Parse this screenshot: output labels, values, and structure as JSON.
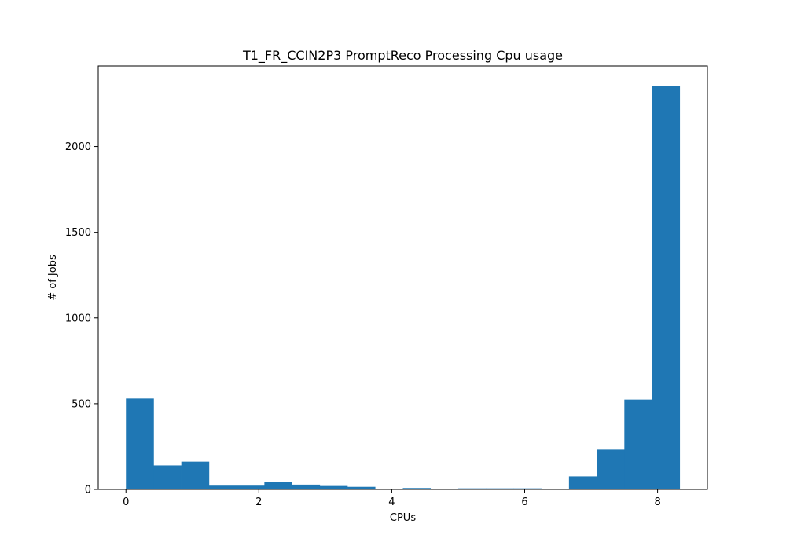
{
  "chart_data": {
    "type": "bar",
    "title": "T1_FR_CCIN2P3 PromptReco Processing Cpu usage",
    "xlabel": "CPUs",
    "ylabel": "# of Jobs",
    "xlim": [
      -0.4167,
      8.75
    ],
    "ylim": [
      0,
      2470
    ],
    "xticks": [
      0,
      2,
      4,
      6,
      8
    ],
    "yticks": [
      0,
      500,
      1000,
      1500,
      2000
    ],
    "bin_edges": [
      0,
      0.4167,
      0.8333,
      1.25,
      1.6667,
      2.0833,
      2.5,
      2.9167,
      3.3333,
      3.75,
      4.1667,
      4.5833,
      5.0,
      5.4167,
      5.8333,
      6.25,
      6.6667,
      7.0833,
      7.5,
      7.9167,
      8.3333
    ],
    "values": [
      530,
      140,
      162,
      22,
      22,
      44,
      28,
      20,
      15,
      4,
      8,
      4,
      6,
      6,
      6,
      3,
      76,
      232,
      524,
      2352
    ],
    "bar_color": "#1f77b4",
    "grid": false
  }
}
